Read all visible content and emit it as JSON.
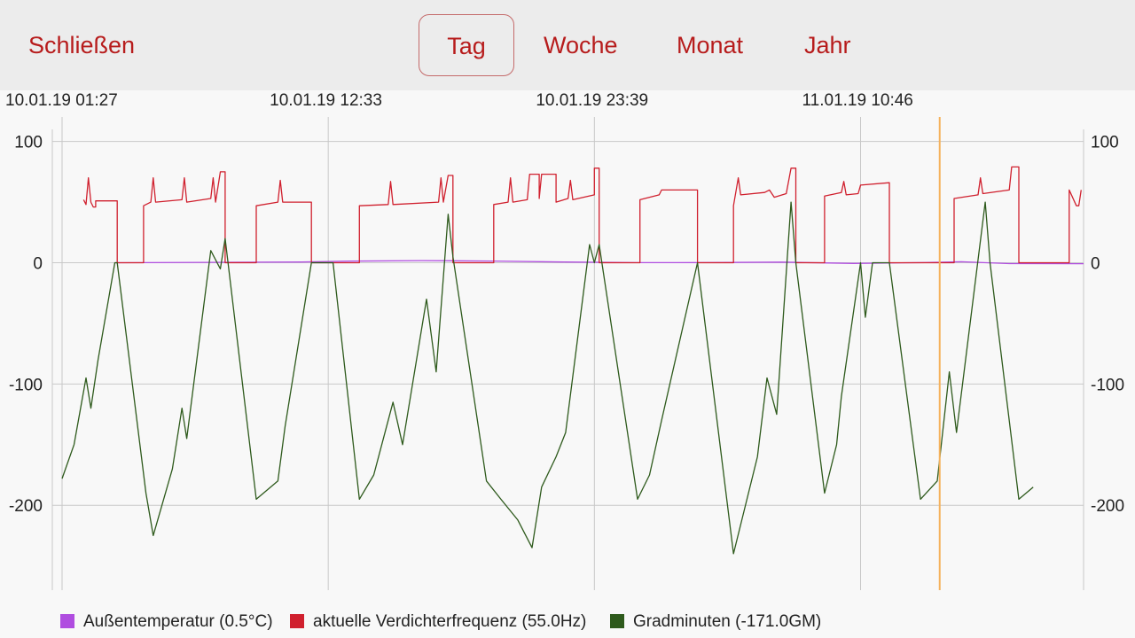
{
  "toolbar": {
    "close_label": "Schließen",
    "tabs": [
      {
        "label": "Tag",
        "active": true
      },
      {
        "label": "Woche",
        "active": false
      },
      {
        "label": "Monat",
        "active": false
      },
      {
        "label": "Jahr",
        "active": false
      }
    ]
  },
  "colors": {
    "accent": "#b71c1c",
    "temperature": "#b04de0",
    "frequency": "#d0202e",
    "gradminuten": "#2e5a1c",
    "cursor": "#f5b25c",
    "grid": "#c8c8c8"
  },
  "chart_data": {
    "type": "line",
    "x_labels": [
      "10.01.19 01:27",
      "10.01.19 12:33",
      "10.01.19 23:39",
      "11.01.19 10:46"
    ],
    "x_range_hours": [
      0,
      42.6
    ],
    "x_label_hours": [
      0,
      11.1,
      22.2,
      33.3
    ],
    "cursor_hour": 36.6,
    "yticks": [
      "100",
      "0",
      "-100",
      "-200"
    ],
    "ytick_values": [
      100,
      0,
      -100,
      -200
    ],
    "ylim": [
      -270,
      110
    ],
    "grid": true,
    "legend_position": "bottom",
    "series": [
      {
        "key": "temperature",
        "name": "Außentemperatur (0.5°C)",
        "color": "#b04de0",
        "points": [
          [
            2.2,
            0
          ],
          [
            6,
            0.3
          ],
          [
            10,
            0.6
          ],
          [
            12,
            1.3
          ],
          [
            15,
            1.8
          ],
          [
            18,
            1.4
          ],
          [
            21,
            0.6
          ],
          [
            24,
            0.1
          ],
          [
            27,
            0.2
          ],
          [
            30,
            0.5
          ],
          [
            33,
            -0.6
          ],
          [
            36,
            0.2
          ],
          [
            37.5,
            0.8
          ],
          [
            39.5,
            -0.7
          ],
          [
            42.6,
            -0.8
          ]
        ]
      },
      {
        "key": "frequency",
        "name": "aktuelle Verdichterfrequenz (55.0Hz)",
        "color": "#d0202e",
        "points": [
          [
            0.9,
            52
          ],
          [
            1.0,
            48
          ],
          [
            1.1,
            70
          ],
          [
            1.2,
            50
          ],
          [
            1.3,
            46
          ],
          [
            1.4,
            46
          ],
          [
            1.4,
            51
          ],
          [
            2.3,
            51
          ],
          [
            2.3,
            0
          ],
          [
            3.4,
            0
          ],
          [
            3.4,
            47
          ],
          [
            3.7,
            50
          ],
          [
            3.8,
            70
          ],
          [
            3.9,
            50
          ],
          [
            5.0,
            52
          ],
          [
            5.1,
            70
          ],
          [
            5.2,
            50
          ],
          [
            6.2,
            53
          ],
          [
            6.3,
            70
          ],
          [
            6.4,
            50
          ],
          [
            6.6,
            75
          ],
          [
            6.8,
            75
          ],
          [
            6.8,
            0
          ],
          [
            8.1,
            0
          ],
          [
            8.1,
            47
          ],
          [
            9.0,
            50
          ],
          [
            9.1,
            68
          ],
          [
            9.2,
            50
          ],
          [
            10.4,
            50
          ],
          [
            10.4,
            0
          ],
          [
            12.4,
            0
          ],
          [
            12.4,
            47
          ],
          [
            13.6,
            48
          ],
          [
            13.7,
            67
          ],
          [
            13.8,
            48
          ],
          [
            15.7,
            50
          ],
          [
            15.8,
            70
          ],
          [
            15.9,
            50
          ],
          [
            16.1,
            72
          ],
          [
            16.3,
            72
          ],
          [
            16.3,
            0
          ],
          [
            18.0,
            0
          ],
          [
            18.0,
            48
          ],
          [
            18.6,
            50
          ],
          [
            18.7,
            70
          ],
          [
            18.8,
            50
          ],
          [
            19.4,
            52
          ],
          [
            19.5,
            73
          ],
          [
            19.9,
            73
          ],
          [
            19.9,
            53
          ],
          [
            20.0,
            73
          ],
          [
            20.6,
            73
          ],
          [
            20.6,
            50
          ],
          [
            21.1,
            53
          ],
          [
            21.2,
            68
          ],
          [
            21.3,
            52
          ],
          [
            22.2,
            56
          ],
          [
            22.2,
            78
          ],
          [
            22.4,
            78
          ],
          [
            22.4,
            0
          ],
          [
            24.1,
            0
          ],
          [
            24.1,
            52
          ],
          [
            24.9,
            56
          ],
          [
            25.0,
            60
          ],
          [
            26.5,
            60
          ],
          [
            26.5,
            0
          ],
          [
            28.0,
            0
          ],
          [
            28.0,
            47
          ],
          [
            28.2,
            70
          ],
          [
            28.3,
            56
          ],
          [
            29.3,
            58
          ],
          [
            29.5,
            60
          ],
          [
            29.7,
            54
          ],
          [
            30.2,
            57
          ],
          [
            30.4,
            78
          ],
          [
            30.6,
            78
          ],
          [
            30.6,
            0
          ],
          [
            31.8,
            0
          ],
          [
            31.8,
            55
          ],
          [
            32.5,
            58
          ],
          [
            32.6,
            67
          ],
          [
            32.7,
            56
          ],
          [
            33.2,
            57
          ],
          [
            33.3,
            64
          ],
          [
            34.5,
            66
          ],
          [
            34.5,
            0
          ],
          [
            37.2,
            0
          ],
          [
            37.2,
            53
          ],
          [
            38.2,
            56
          ],
          [
            38.3,
            70
          ],
          [
            38.4,
            57
          ],
          [
            39.5,
            60
          ],
          [
            39.6,
            79
          ],
          [
            39.9,
            79
          ],
          [
            39.9,
            0
          ],
          [
            42.0,
            0
          ],
          [
            42.0,
            60
          ],
          [
            42.3,
            47
          ],
          [
            42.4,
            47
          ],
          [
            42.5,
            60
          ]
        ]
      },
      {
        "key": "gradminuten",
        "name": "Gradminuten (-171.0GM)",
        "color": "#2e5a1c",
        "points": [
          [
            0,
            -178
          ],
          [
            0.5,
            -150
          ],
          [
            1.0,
            -95
          ],
          [
            1.2,
            -120
          ],
          [
            1.5,
            -80
          ],
          [
            2.2,
            0
          ],
          [
            2.3,
            0
          ],
          [
            3.5,
            -190
          ],
          [
            3.8,
            -225
          ],
          [
            4.6,
            -170
          ],
          [
            5.0,
            -120
          ],
          [
            5.2,
            -145
          ],
          [
            6.2,
            10
          ],
          [
            6.6,
            -5
          ],
          [
            6.8,
            20
          ],
          [
            8.1,
            -195
          ],
          [
            9.0,
            -180
          ],
          [
            9.3,
            -135
          ],
          [
            10.4,
            0
          ],
          [
            11.3,
            0
          ],
          [
            12.4,
            -195
          ],
          [
            13.0,
            -175
          ],
          [
            13.8,
            -115
          ],
          [
            14.2,
            -150
          ],
          [
            15.2,
            -30
          ],
          [
            15.6,
            -90
          ],
          [
            16.1,
            40
          ],
          [
            16.3,
            5
          ],
          [
            17.7,
            -180
          ],
          [
            18.3,
            -195
          ],
          [
            19.0,
            -212
          ],
          [
            19.6,
            -235
          ],
          [
            20.0,
            -185
          ],
          [
            20.6,
            -160
          ],
          [
            21.0,
            -140
          ],
          [
            22.0,
            15
          ],
          [
            22.2,
            0
          ],
          [
            22.4,
            15
          ],
          [
            24.0,
            -195
          ],
          [
            24.5,
            -175
          ],
          [
            25.0,
            -130
          ],
          [
            26.5,
            0
          ],
          [
            28.0,
            -240
          ],
          [
            29.0,
            -160
          ],
          [
            29.4,
            -95
          ],
          [
            29.8,
            -125
          ],
          [
            30.4,
            50
          ],
          [
            30.6,
            0
          ],
          [
            31.8,
            -190
          ],
          [
            32.3,
            -150
          ],
          [
            32.5,
            -110
          ],
          [
            33.3,
            0
          ],
          [
            33.5,
            -45
          ],
          [
            33.8,
            0
          ],
          [
            34.5,
            0
          ],
          [
            35.8,
            -195
          ],
          [
            36.5,
            -180
          ],
          [
            37.0,
            -90
          ],
          [
            37.3,
            -140
          ],
          [
            38.5,
            50
          ],
          [
            38.7,
            0
          ],
          [
            39.9,
            -195
          ],
          [
            40.5,
            -185
          ]
        ]
      }
    ]
  }
}
